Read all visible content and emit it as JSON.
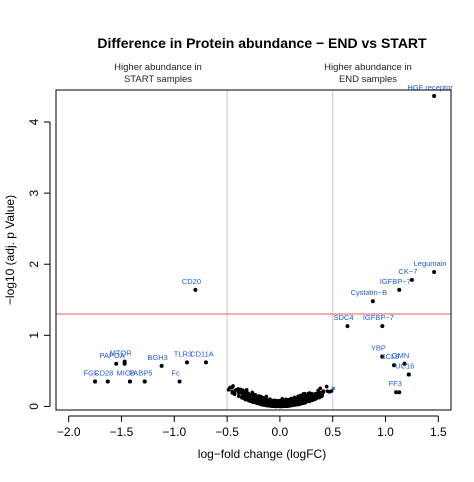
{
  "chart_data": {
    "type": "scatter",
    "title": "Difference in Protein abundance − END vs START",
    "xlabel": "log−fold change (logFC)",
    "ylabel": "−log10 (adj. p Value)",
    "xlim": [
      -2.12,
      1.62
    ],
    "ylim": [
      -0.05,
      4.45
    ],
    "x_ticks": [
      {
        "value": -2.0,
        "label": "−2.0"
      },
      {
        "value": -1.5,
        "label": "−1.5"
      },
      {
        "value": -1.0,
        "label": "−1.0"
      },
      {
        "value": -0.5,
        "label": "−0.5"
      },
      {
        "value": 0.0,
        "label": "0.0"
      },
      {
        "value": 0.5,
        "label": "0.5"
      },
      {
        "value": 1.0,
        "label": "1.0"
      },
      {
        "value": 1.5,
        "label": "1.5"
      }
    ],
    "y_ticks": [
      {
        "value": 0,
        "label": "0"
      },
      {
        "value": 1,
        "label": "1"
      },
      {
        "value": 2,
        "label": "2"
      },
      {
        "value": 3,
        "label": "3"
      },
      {
        "value": 4,
        "label": "4"
      }
    ],
    "grid": false,
    "vertical_lines": {
      "x": [
        -0.5,
        0.5
      ],
      "color": "#c8c8c8"
    },
    "threshold_line": {
      "y": 1.3,
      "color": "#e06060"
    },
    "region_labels": {
      "left": [
        "Higher abundance in",
        "START samples"
      ],
      "right": [
        "Higher abundance in",
        "END samples"
      ]
    },
    "point_colors": {
      "black": "#000000",
      "blue": "#3a82e0",
      "label": "#1e5bd6"
    },
    "labeled_points": [
      {
        "x": 1.46,
        "y": 4.6,
        "label": "HGF receptor"
      },
      {
        "x": 1.46,
        "y": 1.89,
        "label": "Legumain"
      },
      {
        "x": 1.25,
        "y": 1.78,
        "label": "CK−7"
      },
      {
        "x": 1.13,
        "y": 1.64,
        "label": "IGFBP−7"
      },
      {
        "x": 0.88,
        "y": 1.48,
        "label": "Cystatin−B"
      },
      {
        "x": -0.8,
        "y": 1.64,
        "label": "CD20"
      },
      {
        "x": 0.64,
        "y": 1.13,
        "label": "SDC4"
      },
      {
        "x": 0.97,
        "y": 1.13,
        "label": "IGFBP−7"
      },
      {
        "x": -1.47,
        "y": 0.63,
        "label": "MTOR"
      },
      {
        "x": 0.97,
        "y": 0.7,
        "label": "YBP"
      },
      {
        "x": 1.18,
        "y": 0.6,
        "label": "GMN"
      },
      {
        "x": 1.08,
        "y": 0.58,
        "label": "XCL9"
      },
      {
        "x": 1.22,
        "y": 0.45,
        "label": "UC16"
      },
      {
        "x": 1.13,
        "y": 0.2,
        "label": "FF3"
      },
      {
        "x": -1.55,
        "y": 0.6,
        "label": "PAPOA"
      },
      {
        "x": -1.75,
        "y": 0.35,
        "label": "FGF"
      },
      {
        "x": -1.63,
        "y": 0.35,
        "label": "CD28"
      },
      {
        "x": -1.42,
        "y": 0.35,
        "label": "MICB"
      },
      {
        "x": -1.28,
        "y": 0.35,
        "label": "FABP5"
      },
      {
        "x": -1.12,
        "y": 0.57,
        "label": "BGH3"
      },
      {
        "x": -0.88,
        "y": 0.62,
        "label": "TLR3"
      },
      {
        "x": -0.7,
        "y": 0.62,
        "label": "CD11A"
      },
      {
        "x": -0.95,
        "y": 0.35,
        "label": "Fc"
      }
    ],
    "labeled_marker_points": [
      {
        "x": -1.75,
        "y": 0.35
      },
      {
        "x": -1.63,
        "y": 0.35
      },
      {
        "x": -1.42,
        "y": 0.35
      },
      {
        "x": -1.28,
        "y": 0.35
      },
      {
        "x": -1.47,
        "y": 0.6
      },
      {
        "x": 0.97,
        "y": 0.7
      },
      {
        "x": 1.18,
        "y": 0.6
      },
      {
        "x": 1.22,
        "y": 0.45
      },
      {
        "x": 1.1,
        "y": 0.2
      }
    ]
  }
}
